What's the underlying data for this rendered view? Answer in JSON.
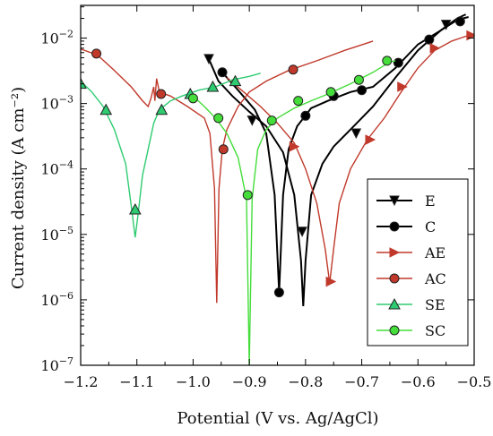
{
  "chart_data": {
    "type": "line",
    "title": "",
    "xlabel": "Potential (V vs. Ag/AgCl)",
    "ylabel": "Current density (A cm⁻²)",
    "xlim": [
      -1.2,
      -0.5
    ],
    "ylim_log10": [
      -7,
      -1.5
    ],
    "yscale": "log",
    "grid": false,
    "legend_position": "bottom-right",
    "x_ticks": [
      -1.2,
      -1.1,
      -1.0,
      -0.9,
      -0.8,
      -0.7,
      -0.6,
      -0.5
    ],
    "x_tick_labels": [
      "−1.2",
      "−1.1",
      "−1.0",
      "−0.9",
      "−0.8",
      "−0.7",
      "−0.6",
      "−0.5"
    ],
    "y_ticks_exp": [
      -7,
      -6,
      -5,
      -4,
      -3,
      -2
    ],
    "series": [
      {
        "name": "E",
        "color": "#000000",
        "marker": "triangle-down",
        "points": [
          [
            -0.972,
            0.0048
          ],
          [
            -0.955,
            0.0022
          ],
          [
            -0.93,
            0.0013
          ],
          [
            -0.9,
            0.00075
          ],
          [
            -0.87,
            0.00045
          ],
          [
            -0.84,
            0.00018
          ],
          [
            -0.82,
            4e-05
          ],
          [
            -0.808,
            4e-06
          ],
          [
            -0.804,
            8e-07
          ],
          [
            -0.8,
            4e-06
          ],
          [
            -0.79,
            4e-05
          ],
          [
            -0.77,
            0.00012
          ],
          [
            -0.75,
            0.00022
          ],
          [
            -0.72,
            0.0004
          ],
          [
            -0.68,
            0.0009
          ],
          [
            -0.64,
            0.0025
          ],
          [
            -0.6,
            0.0065
          ],
          [
            -0.56,
            0.013
          ],
          [
            -0.53,
            0.02
          ],
          [
            -0.515,
            0.023
          ]
        ],
        "markers": [
          [
            -0.972,
            0.0048
          ],
          [
            -0.895,
            0.00055
          ],
          [
            -0.806,
            1.1e-05
          ],
          [
            -0.71,
            0.00035
          ],
          [
            -0.55,
            0.016
          ]
        ]
      },
      {
        "name": "C",
        "color": "#000000",
        "marker": "circle",
        "points": [
          [
            -0.948,
            0.003
          ],
          [
            -0.92,
            0.0016
          ],
          [
            -0.89,
            0.0008
          ],
          [
            -0.87,
            0.00035
          ],
          [
            -0.855,
            4e-05
          ],
          [
            -0.847,
            1.3e-06
          ],
          [
            -0.84,
            4e-05
          ],
          [
            -0.83,
            0.0002
          ],
          [
            -0.815,
            0.00045
          ],
          [
            -0.79,
            0.00085
          ],
          [
            -0.76,
            0.0011
          ],
          [
            -0.72,
            0.0015
          ],
          [
            -0.68,
            0.0018
          ],
          [
            -0.64,
            0.0035
          ],
          [
            -0.6,
            0.008
          ],
          [
            -0.56,
            0.013
          ],
          [
            -0.53,
            0.019
          ],
          [
            -0.51,
            0.021
          ]
        ],
        "markers": [
          [
            -0.948,
            0.003
          ],
          [
            -0.847,
            1.3e-06
          ],
          [
            -0.8,
            0.00065
          ],
          [
            -0.75,
            0.0013
          ],
          [
            -0.7,
            0.0016
          ],
          [
            -0.635,
            0.0042
          ],
          [
            -0.58,
            0.0095
          ],
          [
            -0.525,
            0.018
          ]
        ]
      },
      {
        "name": "AE",
        "color": "#c0392b",
        "marker": "triangle-right",
        "points": [
          [
            -0.94,
            0.0025
          ],
          [
            -0.91,
            0.0015
          ],
          [
            -0.88,
            0.0009
          ],
          [
            -0.85,
            0.0005
          ],
          [
            -0.82,
            0.00025
          ],
          [
            -0.8,
            0.0001
          ],
          [
            -0.78,
            3e-05
          ],
          [
            -0.765,
            6e-06
          ],
          [
            -0.757,
            1.8e-06
          ],
          [
            -0.75,
            6e-06
          ],
          [
            -0.74,
            3e-05
          ],
          [
            -0.72,
            0.0001
          ],
          [
            -0.69,
            0.00028
          ],
          [
            -0.66,
            0.0006
          ],
          [
            -0.63,
            0.0015
          ],
          [
            -0.6,
            0.0035
          ],
          [
            -0.57,
            0.0065
          ],
          [
            -0.54,
            0.009
          ],
          [
            -0.51,
            0.011
          ],
          [
            -0.5,
            0.0115
          ]
        ],
        "markers": [
          [
            -0.82,
            0.00022
          ],
          [
            -0.755,
            1.9e-06
          ],
          [
            -0.685,
            0.00028
          ],
          [
            -0.628,
            0.0018
          ],
          [
            -0.57,
            0.007
          ],
          [
            -0.505,
            0.011
          ]
        ]
      },
      {
        "name": "AC",
        "color": "#c0392b",
        "marker": "circle",
        "points": [
          [
            -1.2,
            0.0068
          ],
          [
            -1.17,
            0.0055
          ],
          [
            -1.14,
            0.0032
          ],
          [
            -1.11,
            0.0018
          ],
          [
            -1.09,
            0.0011
          ],
          [
            -1.08,
            0.0009
          ],
          [
            -1.075,
            0.0012
          ],
          [
            -1.07,
            0.0018
          ],
          [
            -1.068,
            0.0011
          ],
          [
            -1.065,
            0.0024
          ],
          [
            -1.06,
            0.0015
          ],
          [
            -1.04,
            0.0013
          ],
          [
            -1.01,
            0.0009
          ],
          [
            -0.98,
            0.0006
          ],
          [
            -0.97,
            0.00035
          ],
          [
            -0.962,
            5e-05
          ],
          [
            -0.958,
            9e-07
          ],
          [
            -0.954,
            5e-05
          ],
          [
            -0.948,
            0.0002
          ],
          [
            -0.94,
            0.0004
          ],
          [
            -0.92,
            0.0009
          ],
          [
            -0.9,
            0.0015
          ],
          [
            -0.87,
            0.0022
          ],
          [
            -0.83,
            0.0032
          ],
          [
            -0.78,
            0.0045
          ],
          [
            -0.73,
            0.0065
          ],
          [
            -0.68,
            0.009
          ]
        ],
        "markers": [
          [
            -1.172,
            0.0058
          ],
          [
            -1.057,
            0.0014
          ],
          [
            -0.946,
            0.0002
          ],
          [
            -0.822,
            0.0033
          ]
        ]
      },
      {
        "name": "SE",
        "color": "#2ecc71",
        "marker": "triangle-up",
        "points": [
          [
            -1.2,
            0.0022
          ],
          [
            -1.18,
            0.0015
          ],
          [
            -1.16,
            0.0009
          ],
          [
            -1.14,
            0.0004
          ],
          [
            -1.12,
            0.00012
          ],
          [
            -1.108,
            2e-05
          ],
          [
            -1.103,
            9e-06
          ],
          [
            -1.098,
            2e-05
          ],
          [
            -1.09,
            8e-05
          ],
          [
            -1.08,
            0.0002
          ],
          [
            -1.07,
            0.0005
          ],
          [
            -1.06,
            0.0008
          ],
          [
            -1.04,
            0.0011
          ],
          [
            -1.02,
            0.0013
          ],
          [
            -0.99,
            0.0016
          ],
          [
            -0.96,
            0.0018
          ],
          [
            -0.93,
            0.0023
          ],
          [
            -0.9,
            0.0026
          ],
          [
            -0.88,
            0.0029
          ]
        ],
        "markers": [
          [
            -1.2,
            0.002
          ],
          [
            -1.155,
            0.0008
          ],
          [
            -1.103,
            2.4e-05
          ],
          [
            -1.056,
            0.0008
          ],
          [
            -1.005,
            0.0014
          ],
          [
            -0.965,
            0.0018
          ],
          [
            -0.925,
            0.0022
          ]
        ]
      },
      {
        "name": "SC",
        "color": "#44dd3a",
        "marker": "circle",
        "points": [
          [
            -1.0,
            0.0013
          ],
          [
            -0.98,
            0.0009
          ],
          [
            -0.96,
            0.0006
          ],
          [
            -0.94,
            0.00035
          ],
          [
            -0.92,
            0.00015
          ],
          [
            -0.905,
            3.5e-05
          ],
          [
            -0.9,
            1e-07
          ],
          [
            -0.895,
            3.5e-05
          ],
          [
            -0.885,
            0.0002
          ],
          [
            -0.87,
            0.0004
          ],
          [
            -0.85,
            0.0006
          ],
          [
            -0.82,
            0.00085
          ],
          [
            -0.79,
            0.0011
          ],
          [
            -0.76,
            0.0014
          ],
          [
            -0.72,
            0.002
          ],
          [
            -0.68,
            0.003
          ],
          [
            -0.65,
            0.0043
          ],
          [
            -0.64,
            0.0045
          ]
        ],
        "markers": [
          [
            -1.0,
            0.0012
          ],
          [
            -0.955,
            0.0006
          ],
          [
            -0.903,
            4e-05
          ],
          [
            -0.86,
            0.00055
          ],
          [
            -0.813,
            0.0011
          ],
          [
            -0.755,
            0.0015
          ],
          [
            -0.705,
            0.0023
          ],
          [
            -0.655,
            0.0045
          ]
        ]
      }
    ]
  }
}
